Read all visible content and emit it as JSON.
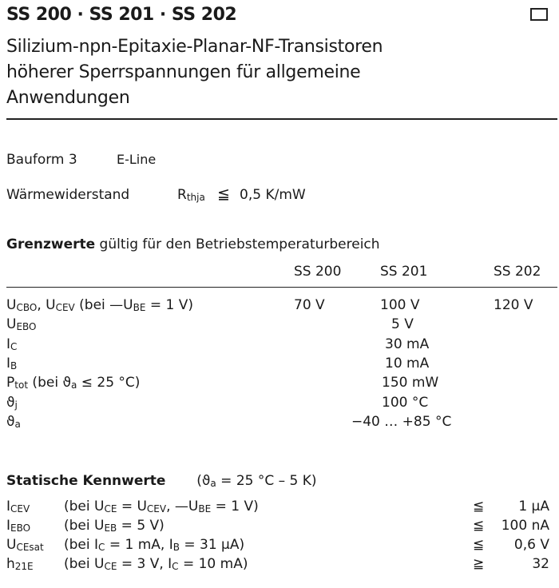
{
  "header": {
    "title": "SS 200 · SS 201 · SS 202",
    "subtitle_lines": [
      "Silizium-npn-Epitaxie-Planar-NF-Transistoren",
      "höherer Sperrspannungen für allgemeine",
      "Anwendungen"
    ]
  },
  "bauform": {
    "label": "Bauform 3",
    "value": "E-Line"
  },
  "waerme": {
    "label": "Wärmewiderstand",
    "symbol": [
      [
        "R",
        ""
      ],
      [
        "thja",
        "s"
      ]
    ],
    "relation": "≦",
    "value": "0,5 K/mW"
  },
  "grenzwerte": {
    "heading": "Grenzwerte",
    "heading_rest": "gültig für den Betriebstemperaturbereich",
    "columns": [
      "SS 200",
      "SS 201",
      "SS 202"
    ],
    "rows": [
      {
        "label": [
          [
            "U",
            ""
          ],
          [
            "CBO",
            "s"
          ],
          [
            ", U",
            ""
          ],
          [
            "CEV",
            "s"
          ],
          [
            " (bei —U",
            ""
          ],
          [
            "BE",
            "s"
          ],
          [
            " = 1 V)",
            ""
          ]
        ],
        "values": [
          "70 V",
          "100 V",
          "120 V"
        ]
      },
      {
        "label": [
          [
            "U",
            ""
          ],
          [
            "EBO",
            "s"
          ]
        ],
        "values": [
          "",
          "5 V",
          ""
        ]
      },
      {
        "label": [
          [
            "I",
            ""
          ],
          [
            "C",
            "s"
          ]
        ],
        "values": [
          "",
          "30 mA",
          ""
        ]
      },
      {
        "label": [
          [
            "I",
            ""
          ],
          [
            "B",
            "s"
          ]
        ],
        "values": [
          "",
          "10 mA",
          ""
        ]
      },
      {
        "label": [
          [
            "P",
            ""
          ],
          [
            "tot",
            "s"
          ],
          [
            " (bei ϑ",
            ""
          ],
          [
            "a",
            "s"
          ],
          [
            " ≤ 25 °C)",
            ""
          ]
        ],
        "values": [
          "",
          "150 mW",
          ""
        ]
      },
      {
        "label": [
          [
            "ϑ",
            ""
          ],
          [
            "j",
            "s"
          ]
        ],
        "values": [
          "",
          "100 °C",
          ""
        ]
      },
      {
        "label": [
          [
            "ϑ",
            ""
          ],
          [
            "a",
            "s"
          ]
        ],
        "values": [
          "",
          "−40 … +85 °C",
          ""
        ]
      }
    ]
  },
  "statisch": {
    "heading": "Statische Kennwerte",
    "condition": [
      [
        "(ϑ",
        ""
      ],
      [
        "a",
        "s"
      ],
      [
        " = 25 °C – 5 K)",
        ""
      ]
    ],
    "rows": [
      {
        "symbol": [
          [
            "I",
            ""
          ],
          [
            "CEV",
            "s"
          ]
        ],
        "condition": [
          [
            "(bei U",
            ""
          ],
          [
            "CE",
            "s"
          ],
          [
            " = U",
            ""
          ],
          [
            "CEV",
            "s"
          ],
          [
            ", —U",
            ""
          ],
          [
            "BE",
            "s"
          ],
          [
            " = 1 V)",
            ""
          ]
        ],
        "relation": "≦",
        "value": "1 μA"
      },
      {
        "symbol": [
          [
            "I",
            ""
          ],
          [
            "EBO",
            "s"
          ]
        ],
        "condition": [
          [
            "(bei U",
            ""
          ],
          [
            "EB",
            "s"
          ],
          [
            " = 5 V)",
            ""
          ]
        ],
        "relation": "≦",
        "value": "100 nA"
      },
      {
        "symbol": [
          [
            "U",
            ""
          ],
          [
            "CEsat",
            "s"
          ]
        ],
        "condition": [
          [
            "(bei I",
            ""
          ],
          [
            "C",
            "s"
          ],
          [
            " = 1 mA, I",
            ""
          ],
          [
            "B",
            "s"
          ],
          [
            " = 31 μA)",
            ""
          ]
        ],
        "relation": "≦",
        "value": "0,6 V"
      },
      {
        "symbol": [
          [
            "h",
            ""
          ],
          [
            "21E",
            "s"
          ]
        ],
        "condition": [
          [
            "(bei U",
            ""
          ],
          [
            "CE",
            "s"
          ],
          [
            " = 3 V,  I",
            ""
          ],
          [
            "C",
            "s"
          ],
          [
            " = 10 mA)",
            ""
          ]
        ],
        "relation": "≧",
        "value": "32"
      }
    ]
  }
}
